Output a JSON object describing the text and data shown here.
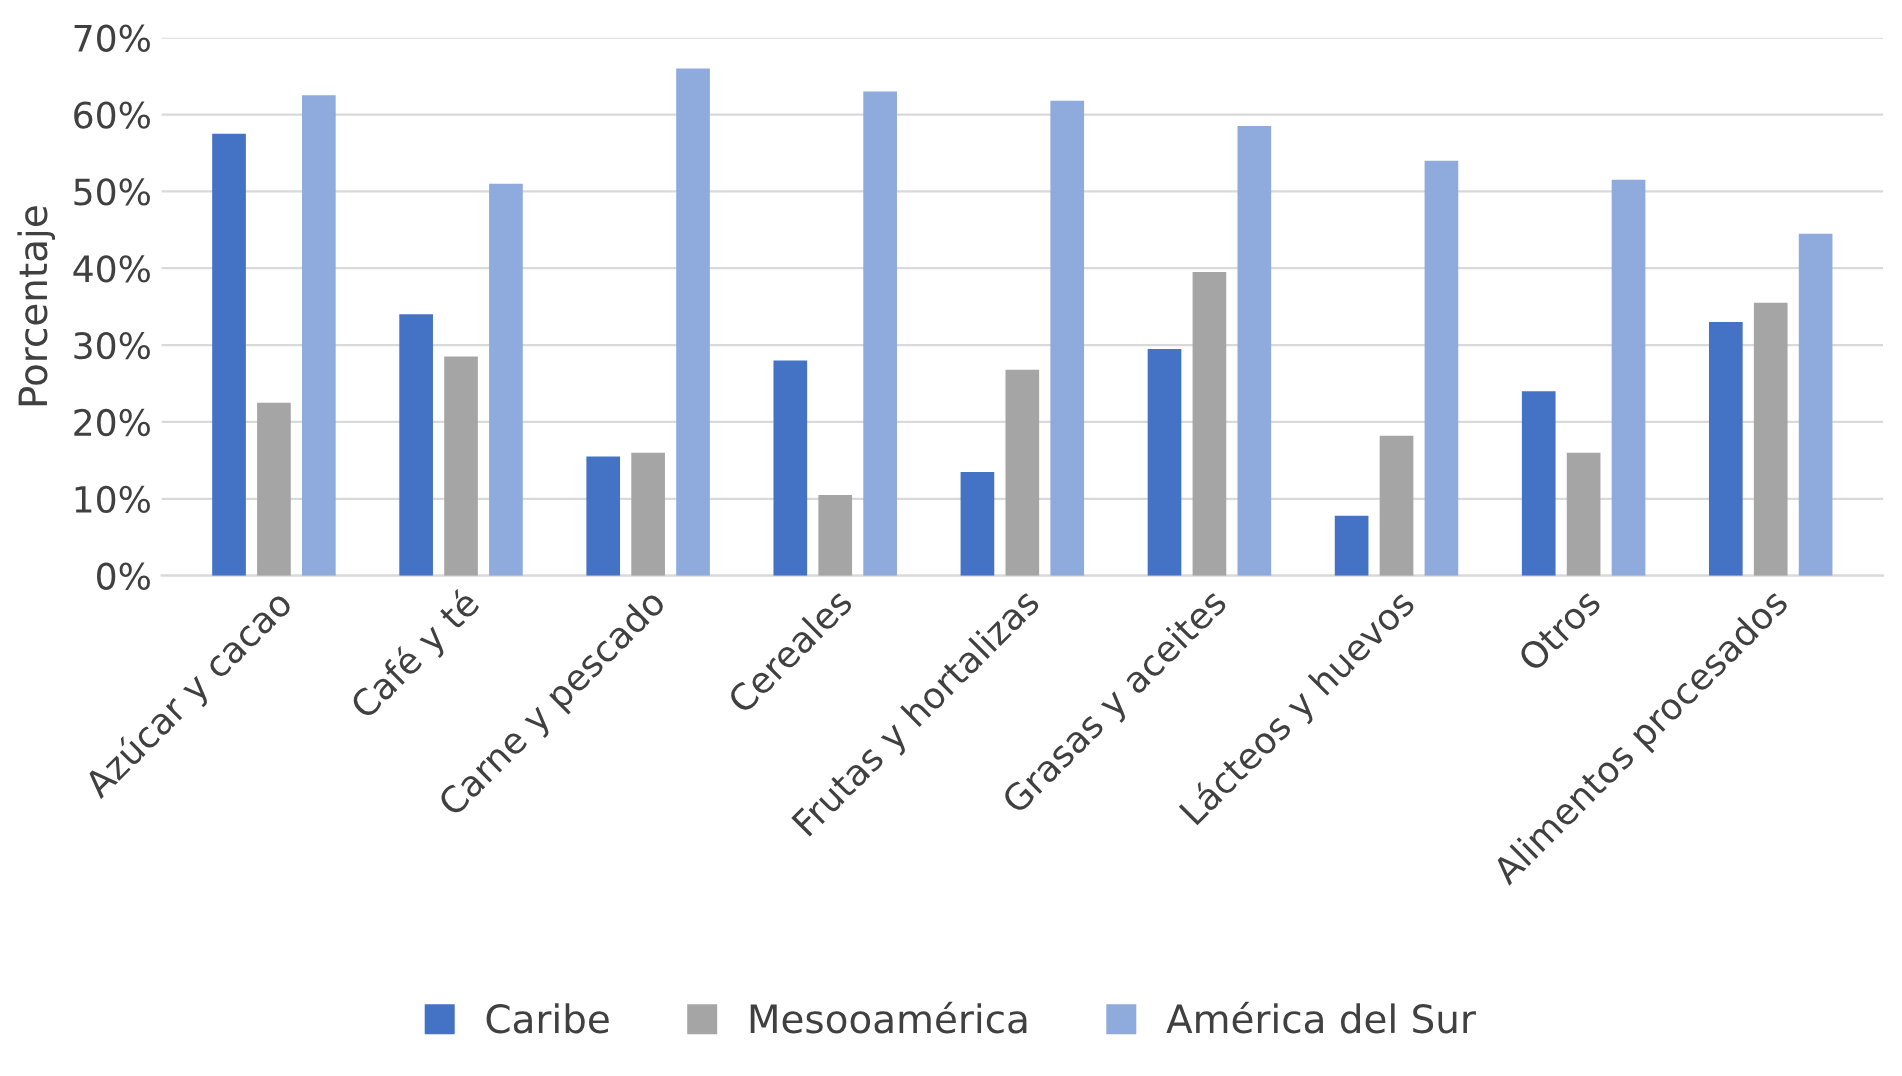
{
  "chart_data": {
    "type": "bar",
    "ylabel": "Porcentaje",
    "categories": [
      "Azúcar y cacao",
      "Café y té",
      "Carne y pescado",
      "Cereales",
      "Frutas y hortalizas",
      "Grasas y aceites",
      "Lácteos y huevos",
      "Otros",
      "Alimentos procesados"
    ],
    "series": [
      {
        "name": "Caribe",
        "color": "#4472c4",
        "values": [
          57.5,
          34,
          15.5,
          28,
          13.5,
          29.5,
          7.8,
          24,
          33
        ]
      },
      {
        "name": "Mesooamérica",
        "color": "#a5a5a5",
        "values": [
          22.5,
          28.5,
          16,
          10.5,
          26.8,
          39.5,
          18.2,
          16,
          35.5
        ]
      },
      {
        "name": "América del Sur",
        "color": "#8faadc",
        "values": [
          62.5,
          51,
          66,
          63,
          61.8,
          58.5,
          54,
          51.5,
          44.5
        ]
      }
    ],
    "ylim": [
      0,
      70
    ],
    "yticks": [
      {
        "value": 0,
        "label": "0%"
      },
      {
        "value": 10,
        "label": "10%"
      },
      {
        "value": 20,
        "label": "20%"
      },
      {
        "value": 30,
        "label": "30%"
      },
      {
        "value": 40,
        "label": "40%"
      },
      {
        "value": 50,
        "label": "50%"
      },
      {
        "value": 60,
        "label": "60%"
      },
      {
        "value": 70,
        "label": "70%"
      }
    ],
    "grid": "y",
    "legend": "bottom"
  }
}
